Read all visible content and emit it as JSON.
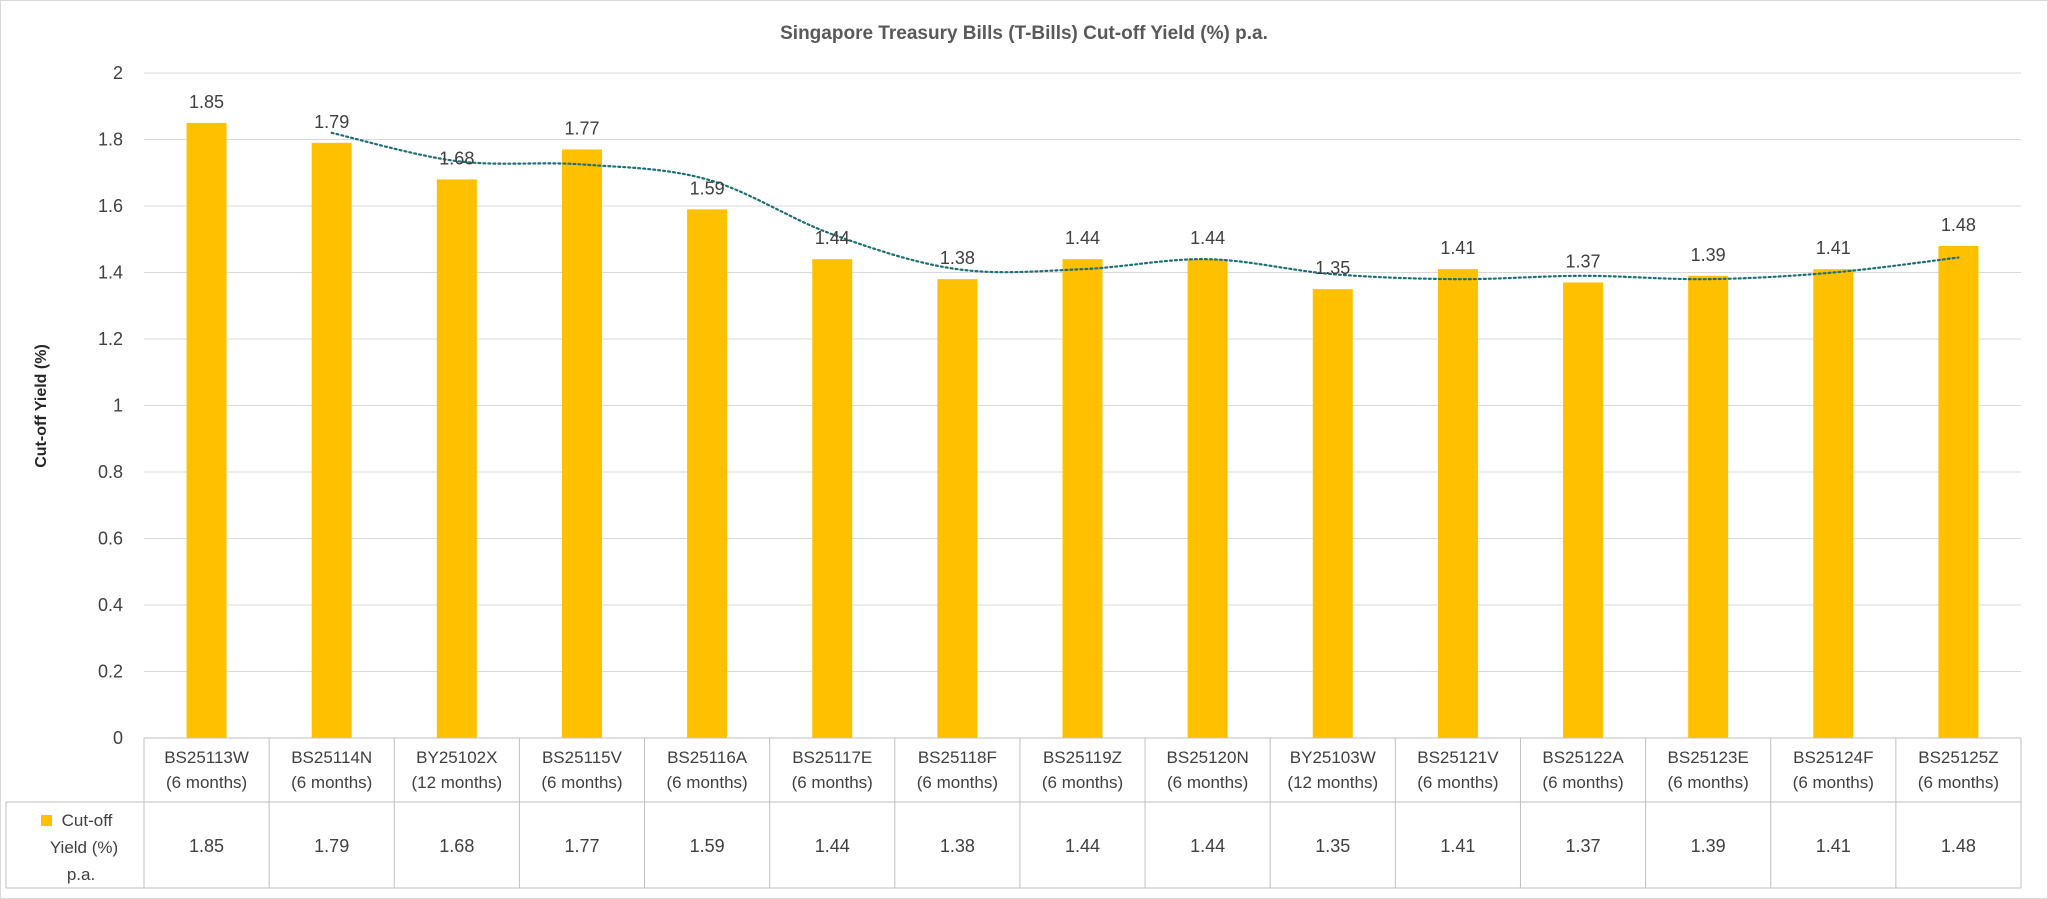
{
  "chart_data": {
    "type": "bar",
    "title": "Singapore Treasury Bills (T-Bills) Cut-off Yield (%) p.a.",
    "ylabel": "Cut-off Yield (%)",
    "xlabel": "",
    "ylim": [
      0,
      2
    ],
    "yticks": [
      "0",
      "0.2",
      "0.4",
      "0.6",
      "0.8",
      "1",
      "1.2",
      "1.4",
      "1.6",
      "1.8",
      "2"
    ],
    "grid": true,
    "categories": [
      [
        "BS25113W",
        "(6 months)"
      ],
      [
        "BS25114N",
        "(6 months)"
      ],
      [
        "BY25102X",
        "(12 months)"
      ],
      [
        "BS25115V",
        "(6 months)"
      ],
      [
        "BS25116A",
        "(6 months)"
      ],
      [
        "BS25117E",
        "(6 months)"
      ],
      [
        "BS25118F",
        "(6 months)"
      ],
      [
        "BS25119Z",
        "(6 months)"
      ],
      [
        "BS25120N",
        "(6 months)"
      ],
      [
        "BY25103W",
        "(12 months)"
      ],
      [
        "BS25121V",
        "(6 months)"
      ],
      [
        "BS25122A",
        "(6 months)"
      ],
      [
        "BS25123E",
        "(6 months)"
      ],
      [
        "BS25124F",
        "(6 months)"
      ],
      [
        "BS25125Z",
        "(6 months)"
      ]
    ],
    "series": [
      {
        "name": [
          "Cut-off",
          "Yield (%)",
          "p.a."
        ],
        "color": "#FFC000",
        "values": [
          1.85,
          1.79,
          1.68,
          1.77,
          1.59,
          1.44,
          1.38,
          1.44,
          1.44,
          1.35,
          1.41,
          1.37,
          1.39,
          1.41,
          1.48
        ],
        "labels": [
          "1.85",
          "1.79",
          "1.68",
          "1.77",
          "1.59",
          "1.44",
          "1.38",
          "1.44",
          "1.44",
          "1.35",
          "1.41",
          "1.37",
          "1.39",
          "1.41",
          "1.48"
        ]
      }
    ],
    "trendline": {
      "type": "moving-average",
      "style": "dotted",
      "color": "#1F6F78"
    },
    "data_table": true,
    "legend_placement": "in data table"
  }
}
